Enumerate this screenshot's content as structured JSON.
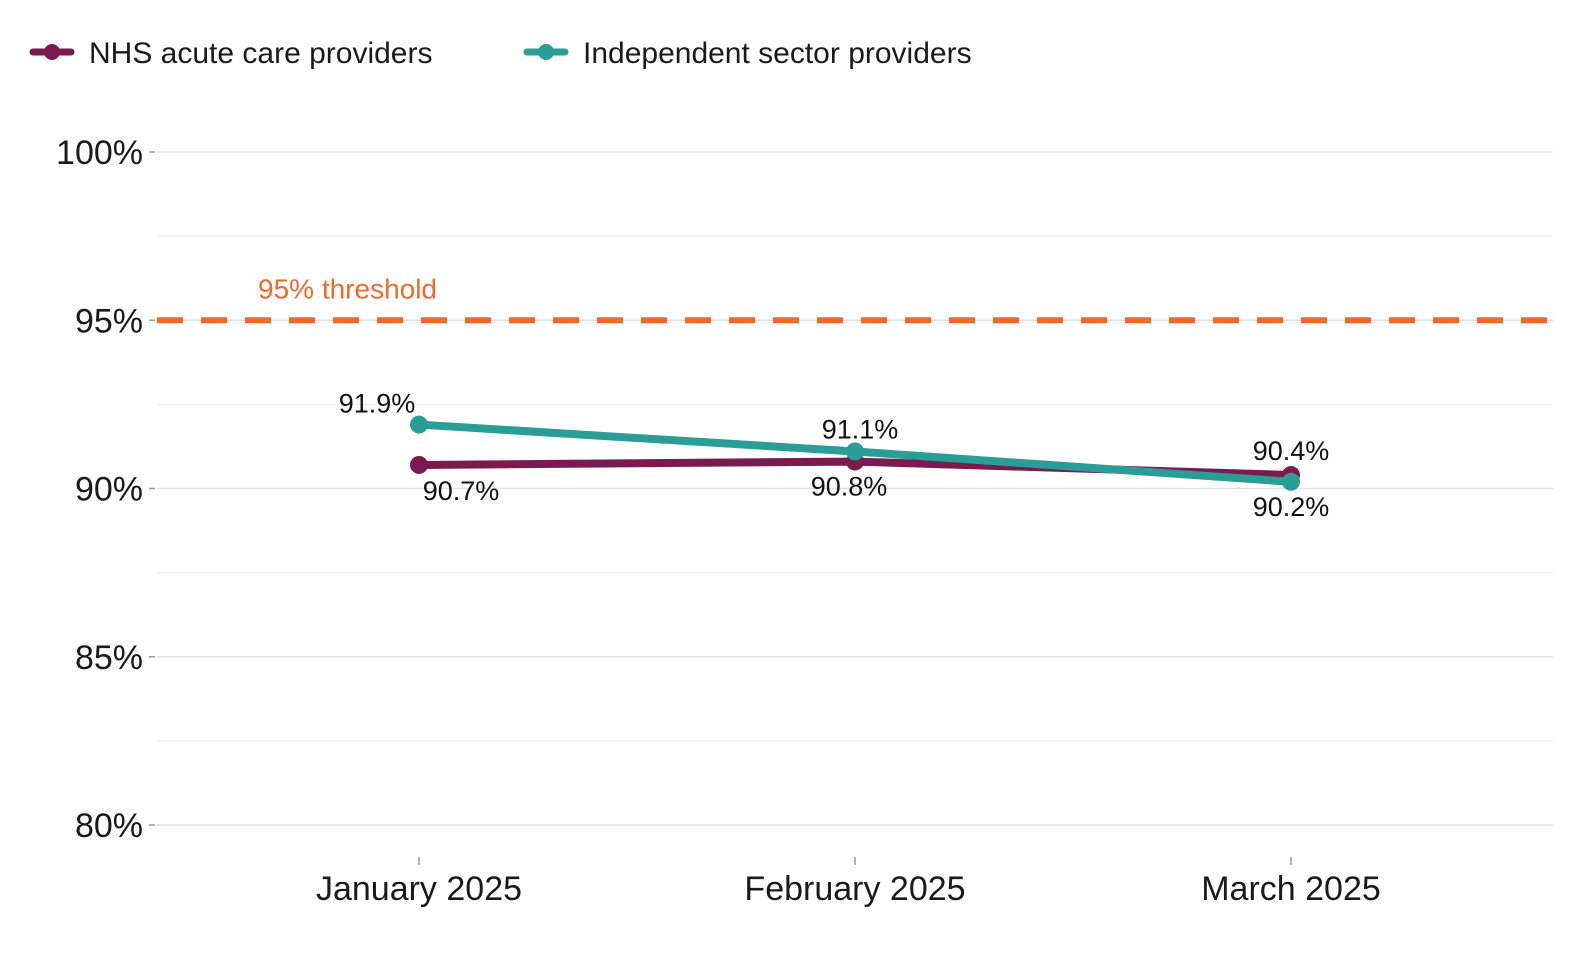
{
  "chart_data": {
    "type": "line",
    "categories": [
      "January 2025",
      "February 2025",
      "March 2025"
    ],
    "series": [
      {
        "name": "NHS acute care providers",
        "color": "#7a1a4f",
        "values": [
          90.7,
          90.8,
          90.4
        ],
        "labels": [
          "90.7%",
          "90.8%",
          "90.4%"
        ]
      },
      {
        "name": "Independent sector providers",
        "color": "#2a9d96",
        "values": [
          91.9,
          91.1,
          90.2
        ],
        "labels": [
          "91.9%",
          "91.1%",
          "90.2%"
        ]
      }
    ],
    "ylim": [
      80,
      100
    ],
    "yticks": [
      {
        "value": 80,
        "label": "80%"
      },
      {
        "value": 85,
        "label": "85%"
      },
      {
        "value": 90,
        "label": "90%"
      },
      {
        "value": 95,
        "label": "95%"
      },
      {
        "value": 100,
        "label": "100%"
      }
    ],
    "reference_line": {
      "value": 95,
      "label": "95% threshold",
      "color": "#ee6a2b",
      "style": "dashed"
    },
    "grid": true,
    "legend_position": "top-left",
    "title": "",
    "xlabel": "",
    "ylabel": ""
  }
}
